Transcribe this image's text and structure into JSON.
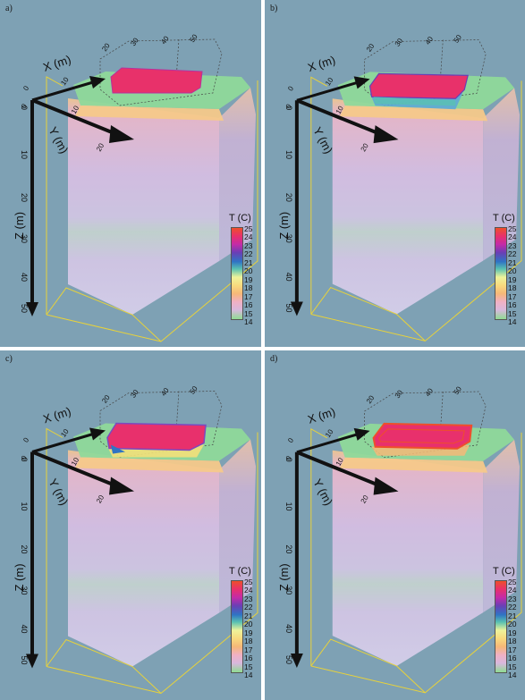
{
  "panels": [
    {
      "label": "a)",
      "variant": "a"
    },
    {
      "label": "b)",
      "variant": "b"
    },
    {
      "label": "c)",
      "variant": "c"
    },
    {
      "label": "d)",
      "variant": "d"
    }
  ],
  "axes": {
    "x_label": "X (m)",
    "y_label": "Y (m)",
    "z_label": "Z (m)",
    "x_ticks": [
      "0",
      "10",
      "20",
      "30",
      "40",
      "50"
    ],
    "y_ticks": [
      "0",
      "10",
      "20"
    ],
    "z_ticks": [
      "0",
      "10",
      "20",
      "30",
      "40",
      "50"
    ]
  },
  "colorbar": {
    "title": "T (C)",
    "ticks": [
      "25",
      "24",
      "23",
      "22",
      "21",
      "20",
      "19",
      "18",
      "17",
      "16",
      "15",
      "14"
    ],
    "colors": [
      "#ee4f2b",
      "#e8306c",
      "#c42ba8",
      "#6a3fb5",
      "#2f74c4",
      "#59c1b1",
      "#eef39a",
      "#f8da7e",
      "#f6b878",
      "#f0b0c4",
      "#d8b8dd",
      "#8fdc92"
    ]
  }
}
